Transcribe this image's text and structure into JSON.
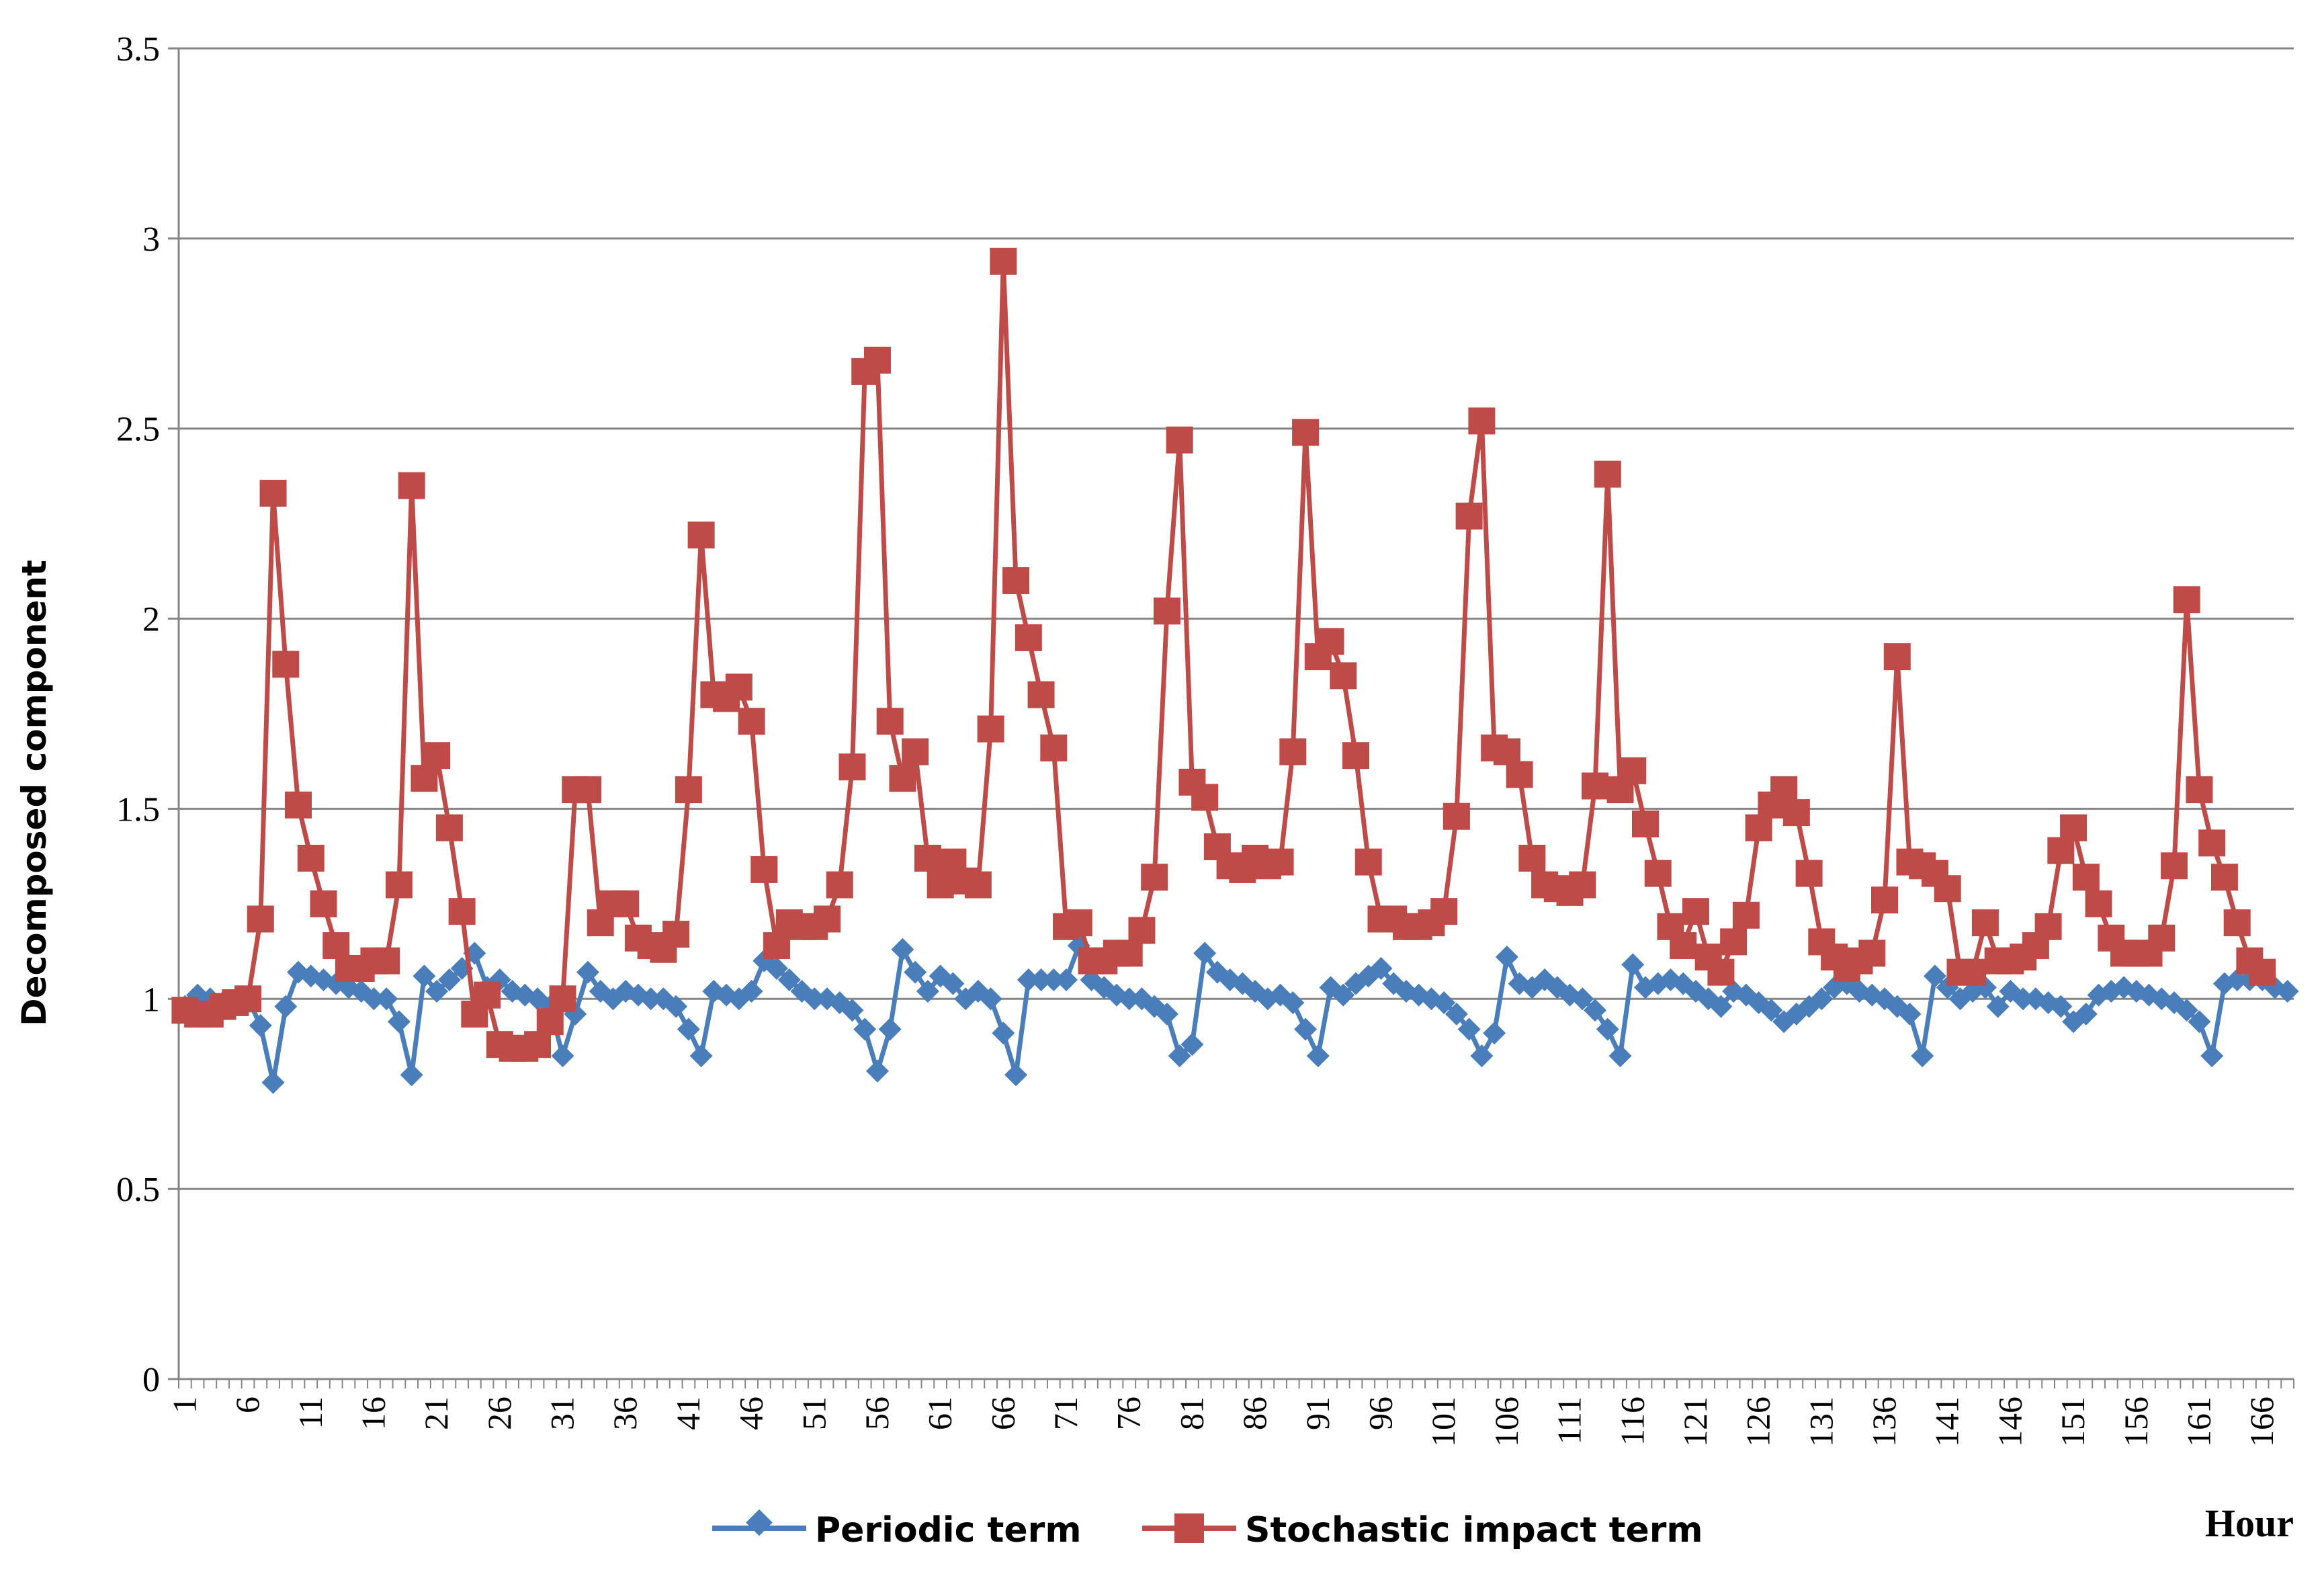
{
  "chart_data": {
    "type": "line",
    "title": "",
    "xlabel": "Hour",
    "ylabel": "Decomposed component",
    "ylim": [
      0,
      3.5
    ],
    "yticks": [
      "0",
      "0.5",
      "1",
      "1.5",
      "2",
      "2.5",
      "3",
      "3.5"
    ],
    "xlim": [
      1,
      168
    ],
    "xticks": [
      "1",
      "6",
      "11",
      "16",
      "21",
      "26",
      "31",
      "36",
      "41",
      "46",
      "51",
      "56",
      "61",
      "66",
      "71",
      "76",
      "81",
      "86",
      "91",
      "96",
      "101",
      "106",
      "111",
      "116",
      "121",
      "126",
      "131",
      "136",
      "141",
      "146",
      "151",
      "156",
      "161",
      "166"
    ],
    "grid": true,
    "legend_position": "bottom",
    "colors": {
      "periodic": "#4a7ebb",
      "stochastic": "#be4b48",
      "grid": "#868686",
      "axis": "#868686"
    },
    "series": [
      {
        "name": "Periodic term",
        "marker": "diamond",
        "values": [
          0.98,
          1.01,
          1,
          0.99,
          0.99,
          1,
          0.93,
          0.78,
          0.98,
          1.07,
          1.06,
          1.05,
          1.04,
          1.03,
          1.02,
          1,
          1,
          0.94,
          0.8,
          1.06,
          1.02,
          1.05,
          1.08,
          1.12,
          1.03,
          1.05,
          1.02,
          1.01,
          1,
          0.98,
          0.85,
          0.96,
          1.07,
          1.02,
          1,
          1.02,
          1.01,
          1,
          1,
          0.98,
          0.92,
          0.85,
          1.02,
          1.01,
          1,
          1.02,
          1.1,
          1.08,
          1.05,
          1.02,
          1,
          1,
          0.99,
          0.97,
          0.92,
          0.81,
          0.92,
          1.13,
          1.07,
          1.02,
          1.06,
          1.04,
          1,
          1.02,
          1,
          0.91,
          0.8,
          1.05,
          1.05,
          1.05,
          1.05,
          1.14,
          1.05,
          1.03,
          1.01,
          1,
          1,
          0.98,
          0.96,
          0.85,
          0.88,
          1.12,
          1.07,
          1.05,
          1.04,
          1.02,
          1,
          1.01,
          0.99,
          0.92,
          0.85,
          1.03,
          1.01,
          1.04,
          1.06,
          1.08,
          1.04,
          1.02,
          1.01,
          1,
          0.99,
          0.96,
          0.92,
          0.85,
          0.91,
          1.11,
          1.04,
          1.03,
          1.05,
          1.03,
          1.01,
          1,
          0.97,
          0.92,
          0.85,
          1.09,
          1.03,
          1.04,
          1.05,
          1.04,
          1.02,
          1,
          0.98,
          1.02,
          1.01,
          0.99,
          0.97,
          0.94,
          0.96,
          0.98,
          1,
          1.03,
          1.04,
          1.02,
          1.01,
          1,
          0.98,
          0.96,
          0.85,
          1.06,
          1.03,
          1,
          1.02,
          1.03,
          0.98,
          1.02,
          1,
          1,
          0.99,
          0.98,
          0.94,
          0.96,
          1.01,
          1.02,
          1.03,
          1.02,
          1.01,
          1,
          0.99,
          0.97,
          0.94,
          0.85,
          1.04,
          1.05,
          1.05,
          1.05,
          1.03,
          1.02
        ]
      },
      {
        "name": "Stochastic impact term",
        "marker": "square",
        "values": [
          0.97,
          0.96,
          0.96,
          0.98,
          0.99,
          1,
          1.21,
          2.33,
          1.88,
          1.51,
          1.37,
          1.25,
          1.14,
          1.08,
          1.08,
          1.1,
          1.1,
          1.3,
          2.35,
          1.58,
          1.64,
          1.45,
          1.23,
          0.96,
          1.01,
          0.88,
          0.87,
          0.87,
          0.88,
          0.94,
          1,
          1.55,
          1.55,
          1.2,
          1.25,
          1.25,
          1.16,
          1.14,
          1.13,
          1.17,
          1.55,
          2.22,
          1.8,
          1.79,
          1.82,
          1.73,
          1.34,
          1.14,
          1.2,
          1.19,
          1.19,
          1.21,
          1.3,
          1.61,
          2.65,
          2.68,
          1.73,
          1.58,
          1.65,
          1.37,
          1.3,
          1.36,
          1.31,
          1.3,
          1.71,
          2.94,
          2.1,
          1.95,
          1.8,
          1.66,
          1.19,
          1.2,
          1.1,
          1.1,
          1.12,
          1.12,
          1.18,
          1.32,
          2.02,
          2.47,
          1.57,
          1.53,
          1.4,
          1.35,
          1.34,
          1.37,
          1.35,
          1.36,
          1.65,
          2.49,
          1.9,
          1.94,
          1.85,
          1.64,
          1.36,
          1.21,
          1.21,
          1.19,
          1.19,
          1.2,
          1.23,
          1.48,
          2.27,
          2.52,
          1.66,
          1.65,
          1.59,
          1.37,
          1.3,
          1.29,
          1.28,
          1.3,
          1.56,
          2.38,
          1.55,
          1.6,
          1.46,
          1.33,
          1.19,
          1.14,
          1.23,
          1.11,
          1.07,
          1.15,
          1.22,
          1.45,
          1.51,
          1.55,
          1.49,
          1.33,
          1.15,
          1.11,
          1.08,
          1.1,
          1.12,
          1.26,
          1.9,
          1.36,
          1.35,
          1.33,
          1.29,
          1.07,
          1.07,
          1.2,
          1.1,
          1.1,
          1.11,
          1.14,
          1.19,
          1.39,
          1.45,
          1.32,
          1.25,
          1.16,
          1.12,
          1.12,
          1.12,
          1.16,
          1.35,
          2.05,
          1.55,
          1.41,
          1.32,
          1.2,
          1.1,
          1.07
        ]
      }
    ]
  }
}
